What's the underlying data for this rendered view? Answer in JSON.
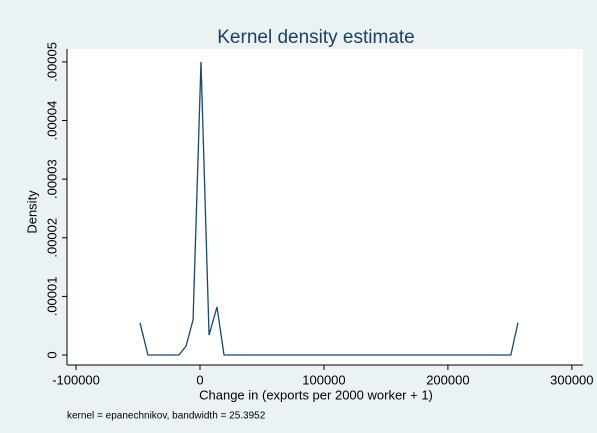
{
  "chart_data": {
    "type": "line",
    "title": "Kernel density estimate",
    "x_label": "Change in (exports per 2000 worker + 1)",
    "y_label": "Density",
    "note": "kernel = epanechnikov, bandwidth = 25.3952",
    "x": [
      -48400,
      -42000,
      -17000,
      -11300,
      -5600,
      800,
      7300,
      13700,
      19400,
      250800,
      256500
    ],
    "series": [
      {
        "name": "Density",
        "color": "#1a476f",
        "values": [
          5.5e-06,
          0,
          0,
          1.5e-06,
          6e-06,
          5e-05,
          3.4e-06,
          8.2e-06,
          0,
          0,
          5.5e-06
        ]
      }
    ],
    "xlim": [
      -107300,
      309000
    ],
    "xticks": [
      -100000,
      0,
      100000,
      200000,
      300000
    ],
    "ylim": [
      -1.7e-06,
      5.22e-05
    ],
    "yticks": [
      0,
      {
        "value": 1e-05,
        "label": ".00001"
      },
      {
        "value": 2e-05,
        "label": ".00002"
      },
      {
        "value": 3e-05,
        "label": ".00003"
      },
      {
        "value": 4e-05,
        "label": ".00004"
      },
      {
        "value": 5e-05,
        "label": ".00005"
      }
    ],
    "grid": false
  }
}
